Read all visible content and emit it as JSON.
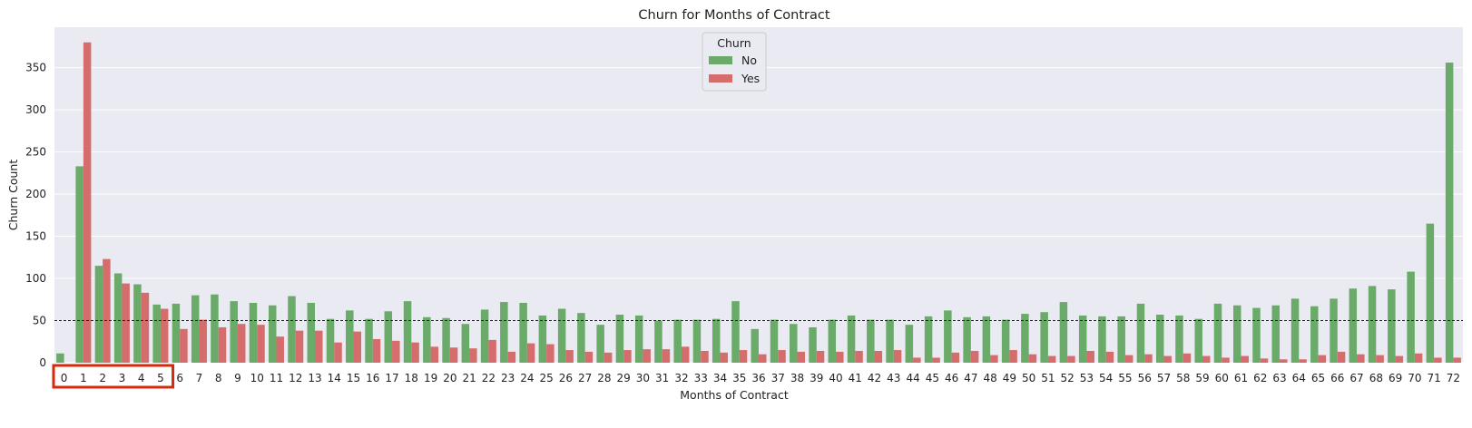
{
  "chart_data": {
    "type": "bar",
    "title": "Churn for Months of Contract",
    "xlabel": "Months of Contract",
    "ylabel": "Churn Count",
    "ylim": [
      0,
      398
    ],
    "yticks": [
      0,
      50,
      100,
      150,
      200,
      250,
      300,
      350
    ],
    "grid": true,
    "reference_line": 50,
    "legend": {
      "title": "Churn",
      "placement": "top-center"
    },
    "highlight_categories": [
      "0",
      "1",
      "2",
      "3",
      "4",
      "5"
    ],
    "highlight_color": "#d62a0e",
    "categories": [
      "0",
      "1",
      "2",
      "3",
      "4",
      "5",
      "6",
      "7",
      "8",
      "9",
      "10",
      "11",
      "12",
      "13",
      "14",
      "15",
      "16",
      "17",
      "18",
      "19",
      "20",
      "21",
      "22",
      "23",
      "24",
      "25",
      "26",
      "27",
      "28",
      "29",
      "30",
      "31",
      "32",
      "33",
      "34",
      "35",
      "36",
      "37",
      "38",
      "39",
      "40",
      "41",
      "42",
      "43",
      "44",
      "45",
      "46",
      "47",
      "48",
      "49",
      "50",
      "51",
      "52",
      "53",
      "54",
      "55",
      "56",
      "57",
      "58",
      "59",
      "60",
      "61",
      "62",
      "63",
      "64",
      "65",
      "66",
      "67",
      "68",
      "69",
      "70",
      "71",
      "72"
    ],
    "series": [
      {
        "name": "No",
        "color": "#6aab6a",
        "values": [
          11,
          233,
          115,
          106,
          93,
          69,
          70,
          80,
          81,
          73,
          71,
          68,
          79,
          71,
          52,
          62,
          52,
          61,
          73,
          54,
          53,
          46,
          63,
          72,
          71,
          56,
          64,
          59,
          45,
          57,
          56,
          50,
          51,
          51,
          52,
          73,
          40,
          51,
          46,
          42,
          51,
          56,
          51,
          51,
          45,
          55,
          62,
          54,
          55,
          51,
          58,
          60,
          72,
          56,
          55,
          55,
          70,
          57,
          56,
          52,
          70,
          68,
          65,
          68,
          76,
          67,
          76,
          88,
          91,
          87,
          108,
          165,
          356
        ]
      },
      {
        "name": "Yes",
        "color": "#d56d6d",
        "values": [
          0,
          380,
          123,
          94,
          83,
          64,
          40,
          51,
          42,
          46,
          45,
          31,
          38,
          38,
          24,
          37,
          28,
          26,
          24,
          19,
          18,
          17,
          27,
          13,
          23,
          22,
          15,
          13,
          12,
          15,
          16,
          16,
          19,
          14,
          12,
          15,
          10,
          15,
          13,
          14,
          13,
          14,
          14,
          15,
          6,
          6,
          12,
          14,
          9,
          15,
          10,
          8,
          8,
          14,
          13,
          9,
          10,
          8,
          11,
          8,
          6,
          8,
          5,
          4,
          4,
          9,
          13,
          10,
          9,
          8,
          11,
          6,
          6
        ]
      }
    ]
  }
}
